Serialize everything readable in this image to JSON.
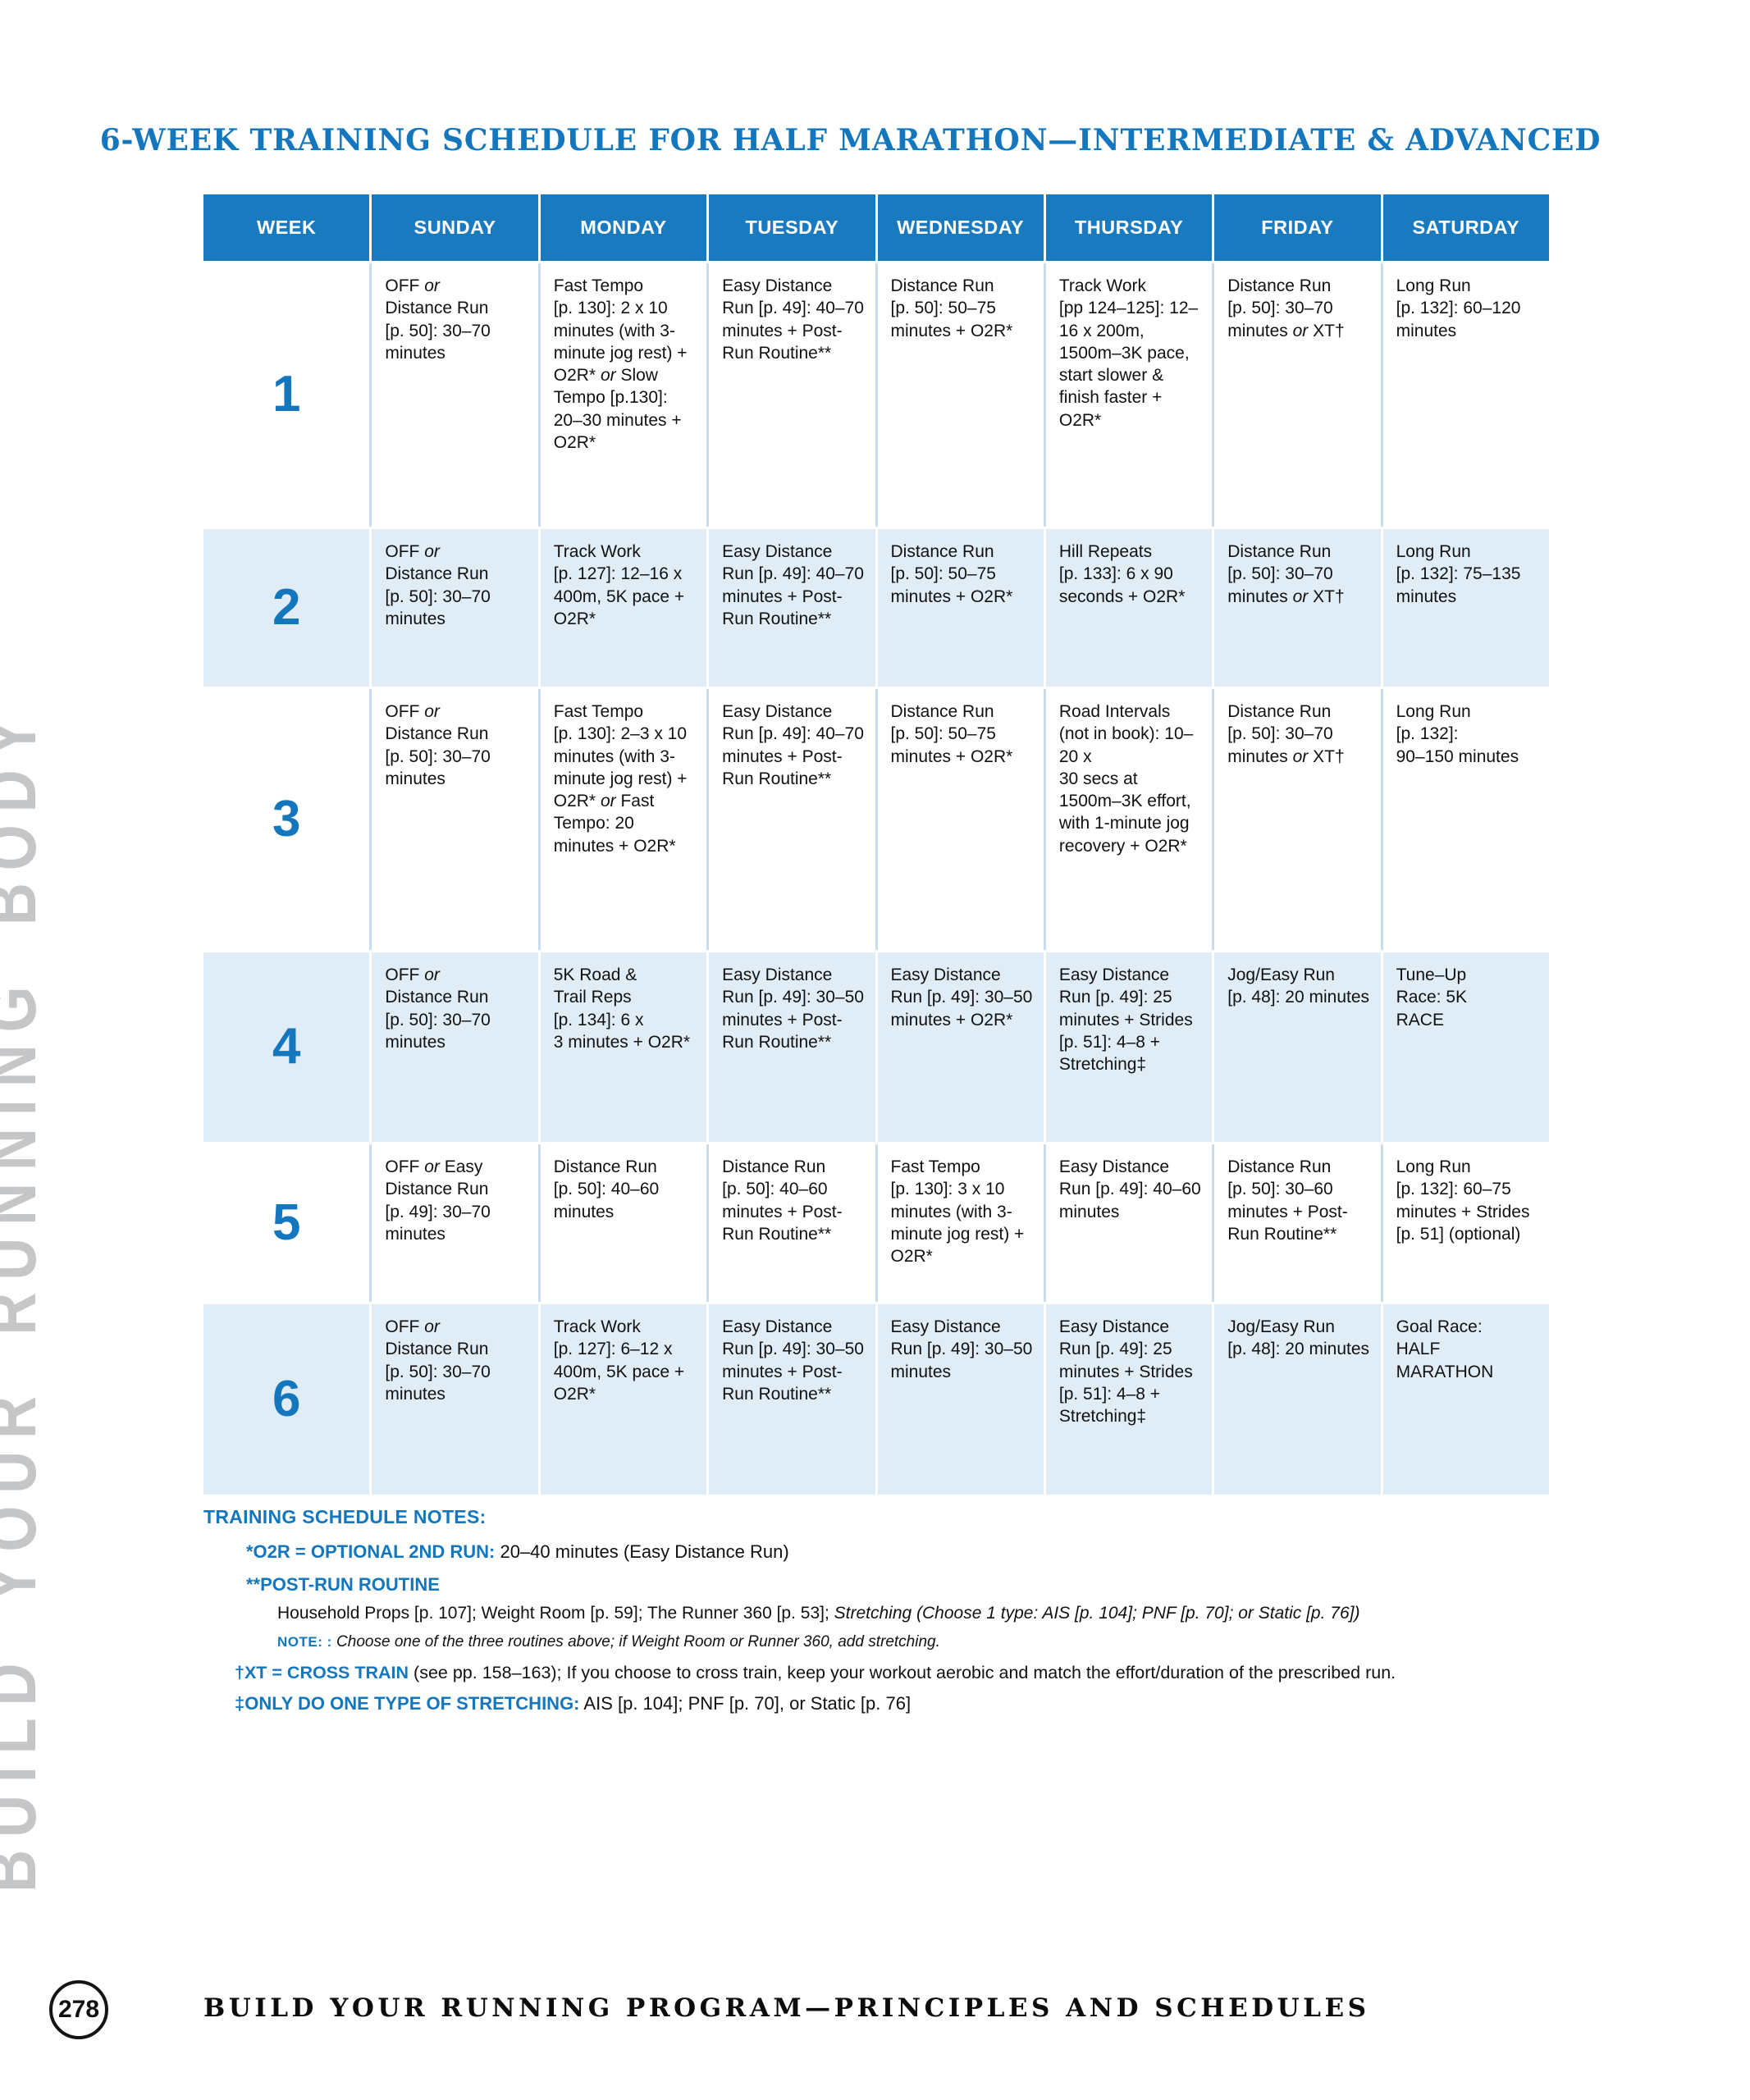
{
  "colors": {
    "accent_blue": "#1477bd",
    "header_bg": "#1a7abf",
    "row_alt": "#e0ecf6",
    "side_text_gray": "#c5c6c8"
  },
  "page": {
    "side_text": "BUILD YOUR RUNNING BODY",
    "title": "6-WEEK TRAINING SCHEDULE FOR HALF MARATHON—INTERMEDIATE & ADVANCED",
    "page_number": "278",
    "footer": "BUILD YOUR RUNNING PROGRAM—PRINCIPLES AND SCHEDULES"
  },
  "table": {
    "headers": [
      "WEEK",
      "SUNDAY",
      "MONDAY",
      "TUESDAY",
      "WEDNESDAY",
      "THURSDAY",
      "FRIDAY",
      "SATURDAY"
    ],
    "rows": [
      {
        "week": "1",
        "days": [
          "OFF <i>or</i><br>Distance Run<br>[p. 50]: 30–70 minutes",
          "Fast Tempo<br>[p. 130]: 2 x 10 minutes (with 3-minute jog rest) + O2R* <i>or</i> Slow Tempo [p.130]: 20–30 minutes + O2R*",
          "Easy Distance<br>Run [p. 49]: 40–70 minutes + Post-Run Routine**",
          "Distance Run<br>[p. 50]: 50–75 minutes + O2R*",
          "Track Work<br>[pp 124–125]: 12–16 x 200m, 1500m–3K pace, start slower & finish faster + O2R*",
          "Distance Run<br>[p. 50]: 30–70 minutes <i>or</i> XT†",
          "Long Run<br>[p. 132]: 60–120 minutes"
        ]
      },
      {
        "week": "2",
        "days": [
          "OFF <i>or</i><br>Distance Run<br>[p. 50]: 30–70 minutes",
          "Track Work<br>[p. 127]: 12–16 x 400m, 5K pace + O2R*",
          "Easy Distance<br>Run [p. 49]: 40–70 minutes + Post-Run Routine**",
          "Distance Run<br>[p. 50]: 50–75 minutes + O2R*",
          "Hill Repeats<br>[p. 133]: 6 x 90 seconds + O2R*",
          "Distance Run<br>[p. 50]: 30–70 minutes <i>or</i> XT†",
          "Long Run<br>[p. 132]: 75–135 minutes"
        ]
      },
      {
        "week": "3",
        "days": [
          "OFF <i>or</i><br>Distance Run<br>[p. 50]: 30–70 minutes",
          "Fast Tempo<br>[p. 130]: 2–3 x 10 minutes (with 3-minute jog rest) + O2R* <i>or</i> Fast Tempo: 20 minutes + O2R*",
          "Easy Distance<br>Run [p. 49]: 40–70 minutes + Post-Run Routine**",
          "Distance Run<br>[p. 50]: 50–75 minutes + O2R*",
          "Road Intervals (not in book): 10–20 x<br>30 secs at 1500m–3K effort, with 1-minute jog recovery + O2R*",
          "Distance Run<br>[p. 50]: 30–70 minutes <i>or</i> XT†",
          "Long Run<br>[p. 132]:<br>90–150 minutes"
        ]
      },
      {
        "week": "4",
        "days": [
          "OFF <i>or</i><br>Distance Run<br>[p. 50]: 30–70 minutes",
          "5K Road &<br>Trail Reps<br>[p. 134]: 6 x<br>3 minutes + O2R*",
          "Easy Distance<br>Run [p. 49]: 30–50 minutes + Post-Run Routine**",
          "Easy Distance<br>Run [p. 49]: 30–50 minutes + O2R*",
          "Easy Distance<br>Run [p. 49]: 25 minutes + Strides<br>[p. 51]: 4–8 + Stretching‡",
          "Jog/Easy Run<br>[p. 48]: 20 minutes",
          "Tune–Up<br>Race: 5K<br>RACE"
        ]
      },
      {
        "week": "5",
        "days": [
          "OFF <i>or</i> Easy<br>Distance Run<br>[p. 49]: 30–70 minutes",
          "Distance Run<br>[p. 50]: 40–60 minutes",
          "Distance Run<br>[p. 50]: 40–60 minutes + Post-Run Routine**",
          "Fast Tempo<br>[p. 130]: 3 x 10 minutes (with 3-minute jog rest) + O2R*",
          "Easy Distance<br>Run [p. 49]: 40–60 minutes",
          "Distance Run<br>[p. 50]: 30–60 minutes + Post-Run Routine**",
          "Long Run<br>[p. 132]: 60–75 minutes + Strides [p. 51] (optional)"
        ]
      },
      {
        "week": "6",
        "days": [
          "OFF <i>or</i><br>Distance Run<br>[p. 50]: 30–70 minutes",
          "Track Work<br>[p. 127]: 6–12 x 400m, 5K pace + O2R*",
          "Easy Distance<br>Run [p. 49]: 30–50 minutes + Post-Run Routine**",
          "Easy Distance<br>Run [p. 49]: 30–50 minutes",
          "Easy Distance<br>Run [p. 49]: 25 minutes + Strides<br>[p. 51]: 4–8 + Stretching‡",
          "Jog/Easy Run<br>[p. 48]: 20 minutes",
          "Goal Race:<br>HALF<br>MARATHON"
        ]
      }
    ]
  },
  "notes": {
    "heading": "TRAINING SCHEDULE NOTES:",
    "o2r_label": "*O2R = OPTIONAL 2ND RUN:",
    "o2r_text": " 20–40 minutes (Easy Distance Run)",
    "postrun_label": "**POST-RUN ROUTINE",
    "household_text": "Household Props [p. 107]; Weight Room [p. 59]; The Runner 360 [p. 53]; <i>Stretching (Choose 1 type: AIS [p. 104]; PNF [p. 70]; or Static [p. 76])</i>",
    "note_label": "NOTE: :",
    "note_text": " Choose one of the three routines above; if Weight Room or Runner 360, add stretching.",
    "xt_label": "†XT = CROSS TRAIN",
    "xt_text": " (see pp. 158–163); If you choose to cross train, keep your workout aerobic and match the effort/duration of the prescribed run.",
    "stretch_label": "‡ONLY DO ONE TYPE OF STRETCHING:",
    "stretch_text": " AIS [p. 104]; PNF [p. 70], or Static [p. 76]"
  }
}
